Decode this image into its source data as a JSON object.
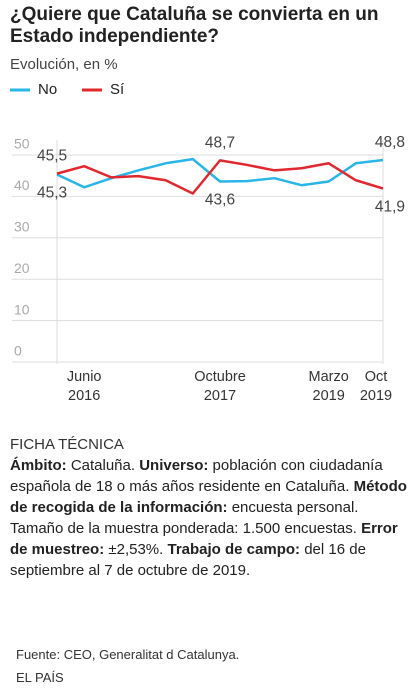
{
  "chart_data": {
    "type": "line",
    "title": "¿Quiere que Cataluña se convierta en un Estado independiente?",
    "subtitle": "Evolución, en %",
    "categories": [
      null,
      "Junio 2016",
      null,
      null,
      null,
      null,
      "Octubre 2017",
      null,
      null,
      null,
      "Marzo 2019",
      null,
      "Oct 2019"
    ],
    "series": [
      {
        "name": "No",
        "color": "#29b5e8",
        "values": [
          45.3,
          42.2,
          44.4,
          46.3,
          48.0,
          49.0,
          43.6,
          43.7,
          44.4,
          42.7,
          43.6,
          48.0,
          48.8
        ],
        "value_labels": [
          "45,3",
          null,
          null,
          null,
          null,
          null,
          "43,6",
          null,
          null,
          null,
          null,
          null,
          "48,8"
        ]
      },
      {
        "name": "Sí",
        "color": "#e0282e",
        "values": [
          45.5,
          47.3,
          44.6,
          44.9,
          43.9,
          40.7,
          48.7,
          47.6,
          46.3,
          46.8,
          48.0,
          43.9,
          41.9
        ],
        "value_labels": [
          "45,5",
          null,
          null,
          null,
          null,
          null,
          "48,7",
          null,
          null,
          null,
          null,
          null,
          "41,9"
        ]
      }
    ],
    "ylim": [
      0,
      50
    ],
    "yticks": [
      0,
      10,
      20,
      30,
      40,
      50
    ],
    "grid": true
  },
  "ficha": {
    "heading": "FICHA TÉCNICA",
    "parts": [
      {
        "bold": "Ámbito:",
        "text": " Cataluña. "
      },
      {
        "bold": "Universo:",
        "text": " población con ciudadanía española de 18 o más años residente en Cataluña. "
      },
      {
        "bold": "Método de recogida de la información:",
        "text": " encuesta personal. Tamaño de la muestra ponderada: 1.500 encuestas. "
      },
      {
        "bold": "Error de muestreo:",
        "text": " ±2,53%. "
      },
      {
        "bold": "Trabajo de campo:",
        "text": " del 16 de septiembre al 7 de octubre de 2019."
      }
    ]
  },
  "footer": {
    "source": "Fuente: CEO, Generalitat d Catalunya.",
    "brand": "EL PAÍS"
  }
}
